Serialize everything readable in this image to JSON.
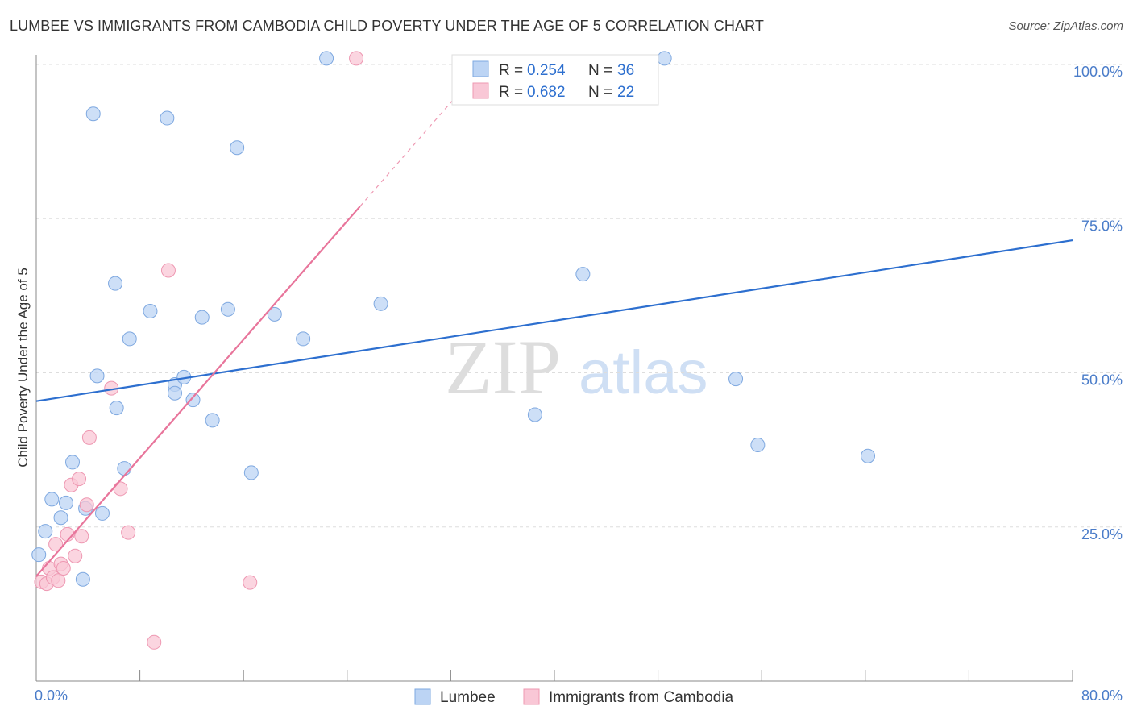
{
  "title": "LUMBEE VS IMMIGRANTS FROM CAMBODIA CHILD POVERTY UNDER THE AGE OF 5 CORRELATION CHART",
  "source": "Source: ZipAtlas.com",
  "watermark": {
    "zip": "ZIP",
    "atlas": "atlas"
  },
  "colors": {
    "lumbee_fill": "#bcd4f4",
    "lumbee_stroke": "#7ea8e0",
    "lumbee_line": "#2d6fcf",
    "cambodia_fill": "#f9c7d6",
    "cambodia_stroke": "#ee98b2",
    "cambodia_line": "#e8759b",
    "grid": "#dddddd",
    "axis": "#888888",
    "tick_text": "#4a7cc9"
  },
  "legend": {
    "r_label": "R =",
    "n_label": "N =",
    "rows": [
      {
        "r": "0.254",
        "n": "36"
      },
      {
        "r": "0.682",
        "n": "22"
      }
    ]
  },
  "chart_data": {
    "type": "scatter",
    "title": "LUMBEE VS IMMIGRANTS FROM CAMBODIA CHILD POVERTY UNDER THE AGE OF 5 CORRELATION CHART",
    "xlabel": "",
    "ylabel": "Child Poverty Under the Age of 5",
    "xlim": [
      0,
      80
    ],
    "ylim": [
      0,
      105
    ],
    "x_ticks": [
      0,
      8,
      16,
      24,
      32,
      40,
      48,
      56,
      64,
      72,
      80
    ],
    "x_tick_labels": [
      {
        "x": 0,
        "label": "0.0%"
      },
      {
        "x": 80,
        "label": "80.0%"
      }
    ],
    "y_gridlines": [
      25,
      50,
      75,
      100
    ],
    "y_tick_labels": [
      {
        "y": 25,
        "label": "25.0%"
      },
      {
        "y": 50,
        "label": "50.0%"
      },
      {
        "y": 75,
        "label": "75.0%"
      },
      {
        "y": 100,
        "label": "100.0%"
      }
    ],
    "legend_position": "bottom",
    "series": [
      {
        "name": "Lumbee",
        "r": 0.254,
        "n": 36,
        "trend": {
          "x": [
            0,
            80
          ],
          "y": [
            45.4,
            71.5
          ]
        },
        "points": [
          [
            0.2,
            20.5
          ],
          [
            0.7,
            24.3
          ],
          [
            1.2,
            29.5
          ],
          [
            1.9,
            26.5
          ],
          [
            2.3,
            28.9
          ],
          [
            2.8,
            35.5
          ],
          [
            3.6,
            16.5
          ],
          [
            3.8,
            28.0
          ],
          [
            4.4,
            92.0
          ],
          [
            4.7,
            49.5
          ],
          [
            5.1,
            27.2
          ],
          [
            6.1,
            64.5
          ],
          [
            6.2,
            44.3
          ],
          [
            6.8,
            34.5
          ],
          [
            7.2,
            55.5
          ],
          [
            8.8,
            60.0
          ],
          [
            10.1,
            91.3
          ],
          [
            10.7,
            48.1
          ],
          [
            10.7,
            46.7
          ],
          [
            11.4,
            49.3
          ],
          [
            12.1,
            45.6
          ],
          [
            12.8,
            59.0
          ],
          [
            13.6,
            42.3
          ],
          [
            14.8,
            60.3
          ],
          [
            15.5,
            86.5
          ],
          [
            16.6,
            33.8
          ],
          [
            18.4,
            59.5
          ],
          [
            20.6,
            55.5
          ],
          [
            22.4,
            101.0
          ],
          [
            26.6,
            61.2
          ],
          [
            38.5,
            43.2
          ],
          [
            42.2,
            66.0
          ],
          [
            48.5,
            101.0
          ],
          [
            54.0,
            49.0
          ],
          [
            55.7,
            38.3
          ],
          [
            64.2,
            36.5
          ]
        ]
      },
      {
        "name": "Immigrants from Cambodia",
        "r": 0.682,
        "n": 22,
        "trend": {
          "x": [
            0,
            25
          ],
          "y": [
            17.0,
            77.0
          ],
          "dash_to": {
            "x": 32.4,
            "y": 94.8
          }
        },
        "points": [
          [
            0.4,
            16.1
          ],
          [
            0.8,
            15.8
          ],
          [
            1.0,
            18.3
          ],
          [
            1.3,
            16.8
          ],
          [
            1.5,
            22.2
          ],
          [
            1.7,
            16.3
          ],
          [
            1.9,
            19.0
          ],
          [
            2.1,
            18.3
          ],
          [
            2.4,
            23.8
          ],
          [
            2.7,
            31.8
          ],
          [
            3.0,
            20.3
          ],
          [
            3.3,
            32.8
          ],
          [
            3.5,
            23.5
          ],
          [
            3.9,
            28.6
          ],
          [
            4.1,
            39.5
          ],
          [
            5.8,
            47.5
          ],
          [
            6.5,
            31.2
          ],
          [
            7.1,
            24.1
          ],
          [
            9.1,
            6.3
          ],
          [
            10.2,
            66.6
          ],
          [
            16.5,
            16.0
          ],
          [
            24.7,
            101.0
          ]
        ]
      }
    ]
  },
  "bottom_legend": [
    {
      "label": "Lumbee"
    },
    {
      "label": "Immigrants from Cambodia"
    }
  ]
}
